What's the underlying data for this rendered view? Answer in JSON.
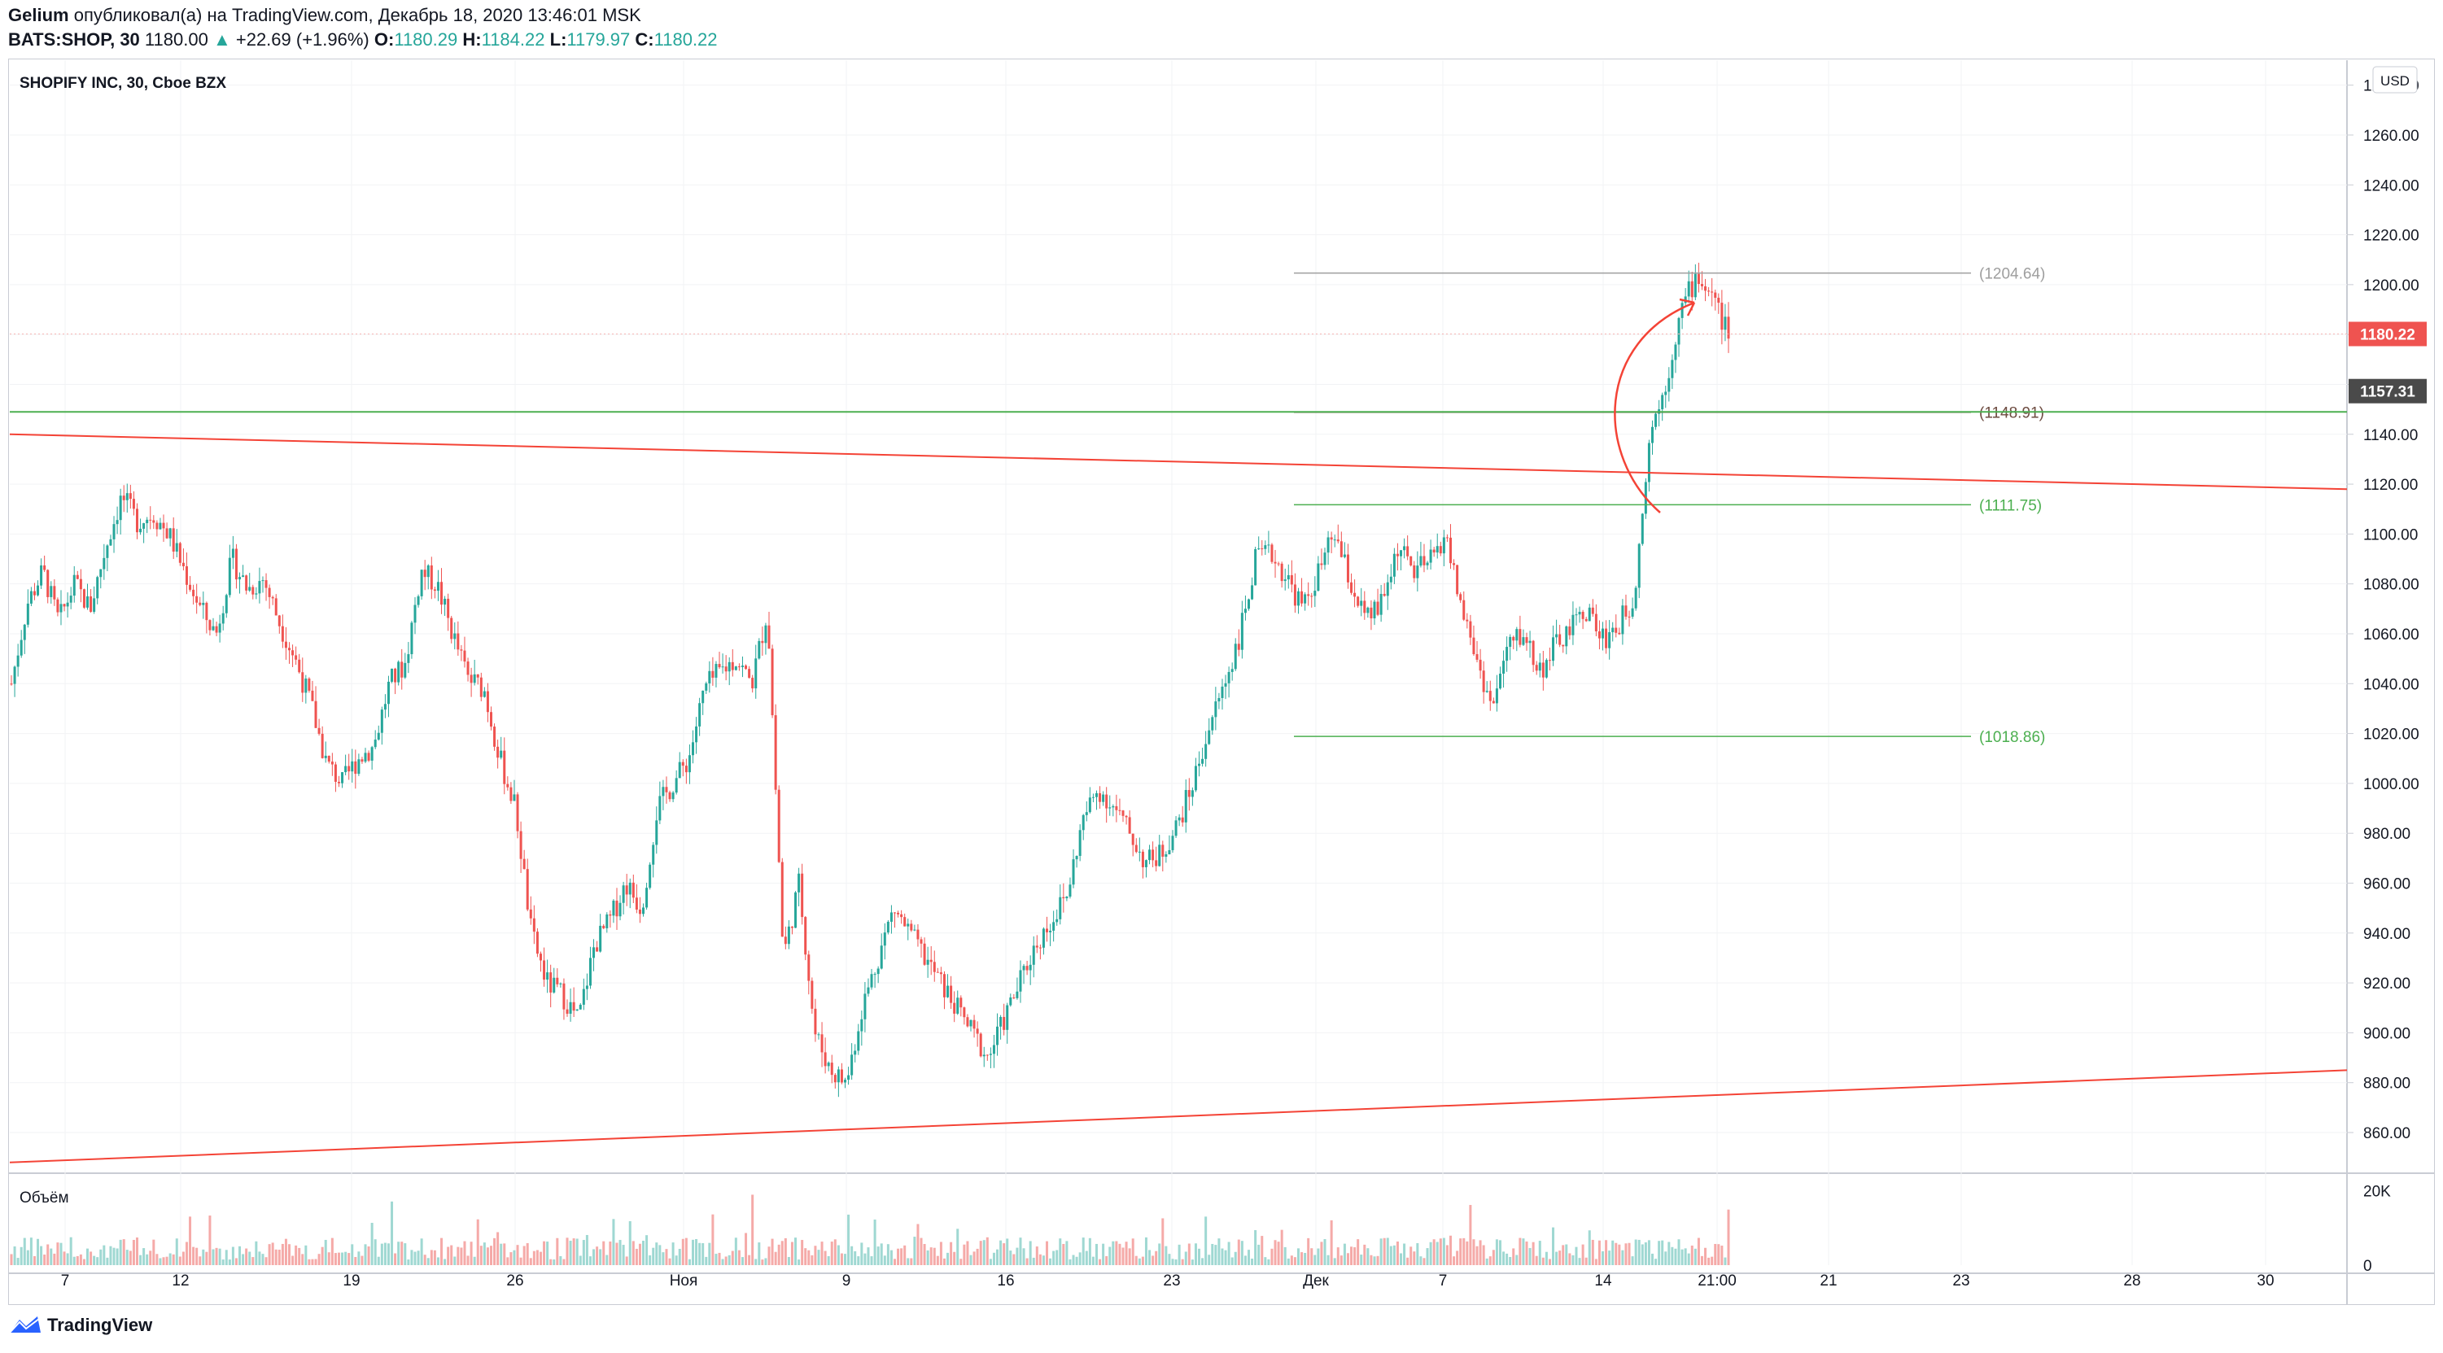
{
  "header": {
    "line1_user": "Gelium",
    "line1_rest": "опубликовал(а) на TradingView.com, Декабрь 18, 2020 13:46:01 MSK",
    "symbol": "BATS:SHOP, 30",
    "price": "1180.00",
    "arrow": "▲",
    "change": "+22.69 (+1.96%)",
    "o_label": "O:",
    "o_value": "1180.29",
    "h_label": "H:",
    "h_value": "1184.22",
    "l_label": "L:",
    "l_value": "1179.97",
    "c_label": "C:",
    "c_value": "1180.22"
  },
  "footer": {
    "logo_text": "TradingView",
    "logo_icon": "tradingview-logo-icon"
  },
  "colors": {
    "up": "#26a69a",
    "down": "#ef5350",
    "trendline": "#f44336",
    "level_green": "#4caf50",
    "level_gray": "#9e9e9e",
    "level_brown": "#6d4c41"
  },
  "chart_data": {
    "type": "candlestick",
    "title": "SHOPIFY INC, 30, Cboe BZX",
    "currency": "USD",
    "ylim": [
      845,
      1290
    ],
    "y_ticks": [
      860,
      880,
      900,
      920,
      940,
      960,
      980,
      1000,
      1020,
      1040,
      1060,
      1080,
      1100,
      1120,
      1140,
      1160,
      1180,
      1200,
      1220,
      1240,
      1260,
      1280
    ],
    "y_tick_labels": [
      "860.00",
      "880.00",
      "900.00",
      "920.00",
      "940.00",
      "960.00",
      "980.00",
      "1000.00",
      "1020.00",
      "1040.00",
      "1060.00",
      "1080.00",
      "1100.00",
      "1120.00",
      "1140.00",
      "1160.00",
      "1180.00",
      "1200.00",
      "1220.00",
      "1240.00",
      "1260.00",
      "1280.00"
    ],
    "x_labels": [
      "7",
      "12",
      "19",
      "26",
      "Ноя",
      "9",
      "16",
      "23",
      "Дек",
      "7",
      "14",
      "21:00",
      "21",
      "23",
      "28",
      "30"
    ],
    "last_price": {
      "value": 1180.22,
      "label": "1180.22"
    },
    "crosshair_price": {
      "value": 1157.31,
      "label": "1157.31"
    },
    "horizontal_levels": [
      {
        "value": 1204.64,
        "label": "(1204.64)",
        "color": "gray"
      },
      {
        "value": 1148.91,
        "label": "(1148.91)",
        "color": "brown"
      },
      {
        "value": 1111.75,
        "label": "(1111.75)",
        "color": "green"
      },
      {
        "value": 1018.86,
        "label": "(1018.86)",
        "color": "green"
      }
    ],
    "support_line_value": 1149,
    "trendlines": [
      {
        "name": "upper",
        "start": 1140,
        "end": 1118
      },
      {
        "name": "lower",
        "start": 848,
        "end": 885
      }
    ],
    "price_path": [
      1040,
      1072,
      1085,
      1065,
      1080,
      1070,
      1095,
      1115,
      1105,
      1108,
      1100,
      1085,
      1070,
      1060,
      1090,
      1078,
      1082,
      1065,
      1050,
      1032,
      1008,
      1000,
      1010,
      1015,
      1040,
      1048,
      1085,
      1080,
      1060,
      1042,
      1038,
      1010,
      990,
      940,
      920,
      915,
      905,
      935,
      945,
      960,
      950,
      990,
      1000,
      1010,
      1038,
      1045,
      1050,
      1040,
      1070,
      930,
      960,
      900,
      885,
      880,
      910,
      930,
      950,
      940,
      930,
      920,
      910,
      900,
      890,
      905,
      920,
      935,
      945,
      955,
      985,
      998,
      990,
      980,
      968,
      972,
      983,
      1000,
      1022,
      1040,
      1060,
      1090,
      1092,
      1082,
      1070,
      1085,
      1100,
      1080,
      1065,
      1072,
      1095,
      1085,
      1088,
      1100,
      1072,
      1050,
      1030,
      1055,
      1060,
      1045,
      1055,
      1062,
      1070,
      1058,
      1063,
      1075,
      1140,
      1160,
      1190,
      1204,
      1195,
      1180
    ],
    "volume": {
      "label": "Объём",
      "ticks": [
        0,
        20000
      ],
      "tick_labels": [
        "0",
        "20K"
      ],
      "max": 23000
    }
  }
}
